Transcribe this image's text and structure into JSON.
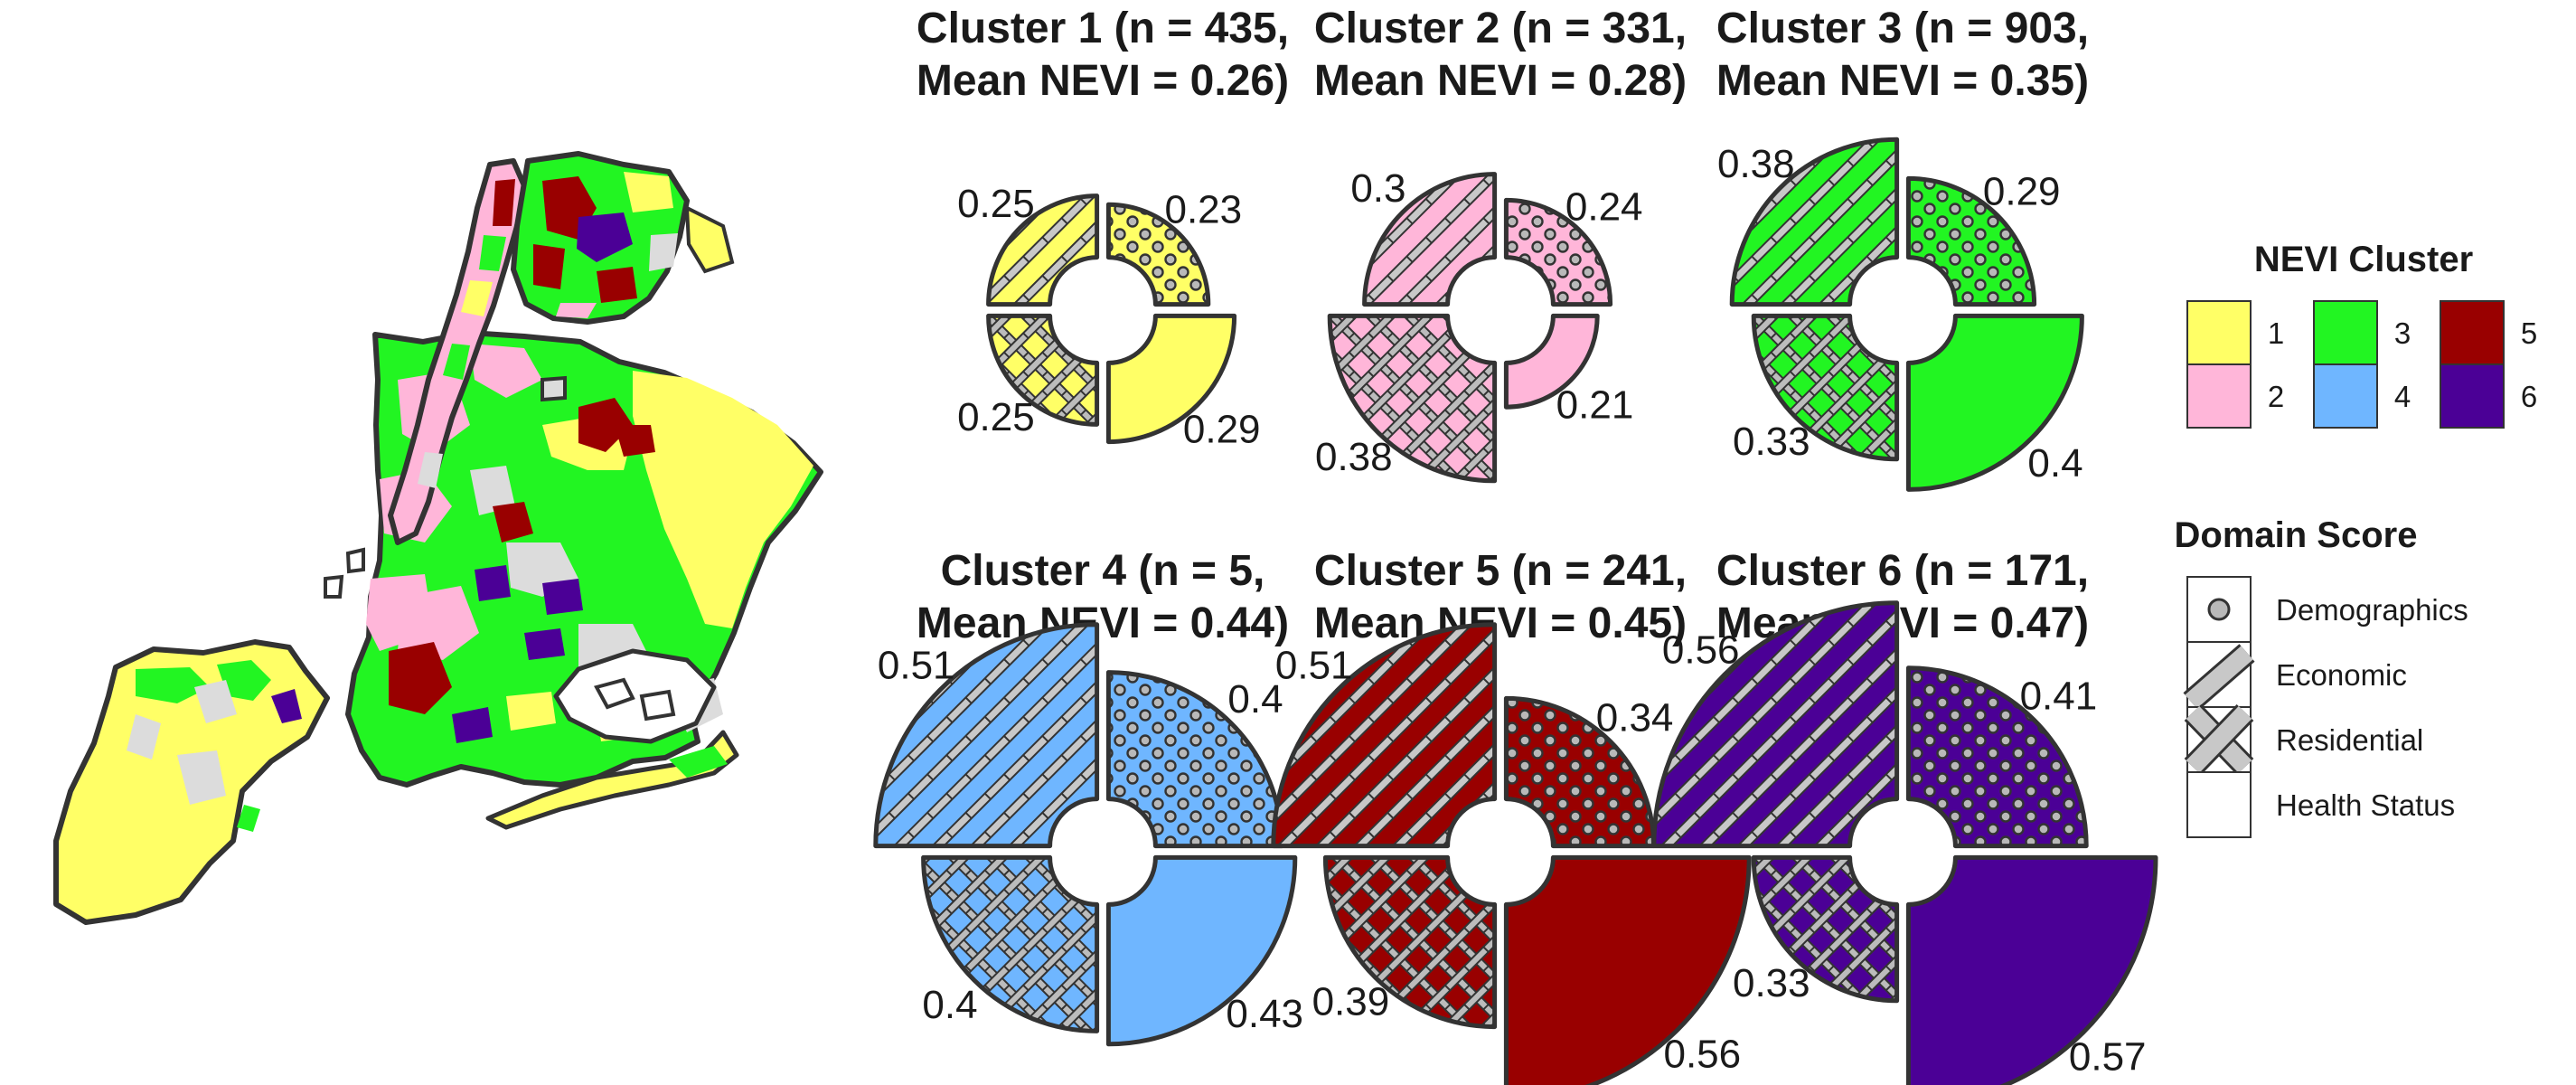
{
  "colors": {
    "1": "#ffff66",
    "2": "#ffb6d9",
    "3": "#22f522",
    "4": "#6fb6ff",
    "5": "#990000",
    "6": "#4b0096",
    "outline": "#333333",
    "no_data": "#dcdcdc"
  },
  "chart_data": [
    {
      "type": "pie",
      "variant": "polar-area-donut",
      "cluster": "1",
      "title_line1": "Cluster 1 (n = 435,",
      "title_line2": "Mean NEVI = 0.26)",
      "n": 435,
      "mean_nevi": 0.26,
      "segments": [
        {
          "domain": "Economic",
          "value": 0.25,
          "label": "0.25"
        },
        {
          "domain": "Demographics",
          "value": 0.23,
          "label": "0.23"
        },
        {
          "domain": "Residential",
          "value": 0.25,
          "label": "0.25"
        },
        {
          "domain": "Health Status",
          "value": 0.29,
          "label": "0.29"
        }
      ]
    },
    {
      "type": "pie",
      "variant": "polar-area-donut",
      "cluster": "2",
      "title_line1": "Cluster 2 (n = 331,",
      "title_line2": "Mean NEVI = 0.28)",
      "n": 331,
      "mean_nevi": 0.28,
      "segments": [
        {
          "domain": "Economic",
          "value": 0.3,
          "label": "0.3"
        },
        {
          "domain": "Demographics",
          "value": 0.24,
          "label": "0.24"
        },
        {
          "domain": "Residential",
          "value": 0.38,
          "label": "0.38"
        },
        {
          "domain": "Health Status",
          "value": 0.21,
          "label": "0.21"
        }
      ]
    },
    {
      "type": "pie",
      "variant": "polar-area-donut",
      "cluster": "3",
      "title_line1": "Cluster 3 (n = 903,",
      "title_line2": "Mean NEVI = 0.35)",
      "n": 903,
      "mean_nevi": 0.35,
      "segments": [
        {
          "domain": "Economic",
          "value": 0.38,
          "label": "0.38"
        },
        {
          "domain": "Demographics",
          "value": 0.29,
          "label": "0.29"
        },
        {
          "domain": "Residential",
          "value": 0.33,
          "label": "0.33"
        },
        {
          "domain": "Health Status",
          "value": 0.4,
          "label": "0.4"
        }
      ]
    },
    {
      "type": "pie",
      "variant": "polar-area-donut",
      "cluster": "4",
      "title_line1": "Cluster 4 (n = 5,",
      "title_line2": "Mean NEVI = 0.44)",
      "n": 5,
      "mean_nevi": 0.44,
      "segments": [
        {
          "domain": "Economic",
          "value": 0.51,
          "label": "0.51"
        },
        {
          "domain": "Demographics",
          "value": 0.4,
          "label": "0.4"
        },
        {
          "domain": "Residential",
          "value": 0.4,
          "label": "0.4"
        },
        {
          "domain": "Health Status",
          "value": 0.43,
          "label": "0.43"
        }
      ]
    },
    {
      "type": "pie",
      "variant": "polar-area-donut",
      "cluster": "5",
      "title_line1": "Cluster 5 (n = 241,",
      "title_line2": "Mean NEVI = 0.45)",
      "n": 241,
      "mean_nevi": 0.45,
      "segments": [
        {
          "domain": "Economic",
          "value": 0.51,
          "label": "0.51"
        },
        {
          "domain": "Demographics",
          "value": 0.34,
          "label": "0.34"
        },
        {
          "domain": "Residential",
          "value": 0.39,
          "label": "0.39"
        },
        {
          "domain": "Health Status",
          "value": 0.56,
          "label": "0.56"
        }
      ]
    },
    {
      "type": "pie",
      "variant": "polar-area-donut",
      "cluster": "6",
      "title_line1": "Cluster 6 (n = 171,",
      "title_line2": "Mean NEVI = 0.47)",
      "n": 171,
      "mean_nevi": 0.47,
      "segments": [
        {
          "domain": "Economic",
          "value": 0.56,
          "label": "0.56"
        },
        {
          "domain": "Demographics",
          "value": 0.41,
          "label": "0.41"
        },
        {
          "domain": "Residential",
          "value": 0.33,
          "label": "0.33"
        },
        {
          "domain": "Health Status",
          "value": 0.57,
          "label": "0.57"
        }
      ]
    }
  ],
  "legend_cluster": {
    "title": "NEVI Cluster",
    "items": [
      "1",
      "2",
      "3",
      "4",
      "5",
      "6"
    ]
  },
  "legend_domain": {
    "title": "Domain Score",
    "items": [
      "Demographics",
      "Economic",
      "Residential",
      "Health Status"
    ]
  },
  "map": {
    "regions": [
      "Bronx",
      "Manhattan",
      "Queens",
      "Brooklyn",
      "Staten Island"
    ]
  }
}
